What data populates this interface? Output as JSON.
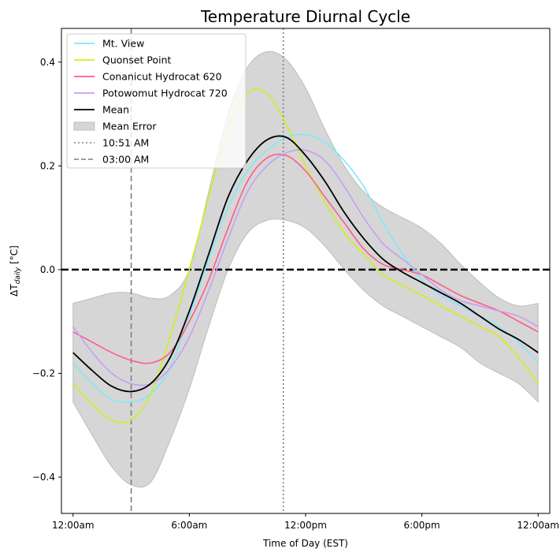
{
  "chart_data": {
    "type": "line",
    "title": "Temperature Diurnal Cycle",
    "xlabel": "Time of Day (EST)",
    "ylabel": "ΔT",
    "ylabel_sub": "daily",
    "ylabel_unit": " [°C]",
    "xlim": [
      -0.6,
      24.6
    ],
    "ylim": [
      -0.47,
      0.465
    ],
    "x_ticks": [
      {
        "value": 0,
        "label": "12:00am"
      },
      {
        "value": 6,
        "label": "6:00am"
      },
      {
        "value": 12,
        "label": "12:00pm"
      },
      {
        "value": 18,
        "label": "6:00pm"
      },
      {
        "value": 24,
        "label": "12:00am"
      }
    ],
    "y_ticks": [
      {
        "value": 0.4,
        "label": "0.4"
      },
      {
        "value": 0.2,
        "label": "0.2"
      },
      {
        "value": 0.0,
        "label": "0.0"
      },
      {
        "value": -0.2,
        "label": "−0.2"
      },
      {
        "value": -0.4,
        "label": "−0.4"
      }
    ],
    "legend_position": "top-left",
    "x": [
      0,
      1,
      2,
      3,
      4,
      5,
      6,
      7,
      8,
      9,
      10,
      11,
      12,
      13,
      14,
      15,
      16,
      17,
      18,
      19,
      20,
      21,
      22,
      23,
      24
    ],
    "series": [
      {
        "name": "Mt. View",
        "color": "#7fe9f8",
        "values": [
          -0.18,
          -0.22,
          -0.25,
          -0.255,
          -0.24,
          -0.19,
          -0.09,
          0.02,
          0.12,
          0.19,
          0.23,
          0.255,
          0.26,
          0.245,
          0.21,
          0.16,
          0.09,
          0.03,
          -0.02,
          -0.05,
          -0.07,
          -0.09,
          -0.11,
          -0.14,
          -0.18
        ]
      },
      {
        "name": "Quonset Point",
        "color": "#ccf21c",
        "values": [
          -0.22,
          -0.26,
          -0.29,
          -0.29,
          -0.24,
          -0.13,
          0.0,
          0.14,
          0.27,
          0.34,
          0.34,
          0.28,
          0.2,
          0.13,
          0.07,
          0.03,
          -0.01,
          -0.03,
          -0.05,
          -0.07,
          -0.09,
          -0.11,
          -0.13,
          -0.17,
          -0.22
        ]
      },
      {
        "name": "Conanicut Hydrocat 620",
        "color": "#ff5d84",
        "values": [
          -0.12,
          -0.14,
          -0.16,
          -0.175,
          -0.18,
          -0.16,
          -0.1,
          -0.02,
          0.08,
          0.17,
          0.215,
          0.22,
          0.19,
          0.14,
          0.09,
          0.04,
          0.01,
          0.0,
          -0.01,
          -0.03,
          -0.05,
          -0.065,
          -0.08,
          -0.1,
          -0.12
        ]
      },
      {
        "name": "Potowomut Hydrocat 720",
        "color": "#c89ef3",
        "values": [
          -0.11,
          -0.16,
          -0.2,
          -0.22,
          -0.22,
          -0.19,
          -0.13,
          -0.04,
          0.06,
          0.15,
          0.2,
          0.225,
          0.23,
          0.21,
          0.16,
          0.1,
          0.05,
          0.02,
          -0.01,
          -0.04,
          -0.06,
          -0.07,
          -0.08,
          -0.09,
          -0.11
        ]
      },
      {
        "name": "Mean",
        "color": "#000000",
        "values": [
          -0.16,
          -0.195,
          -0.225,
          -0.235,
          -0.22,
          -0.17,
          -0.08,
          0.03,
          0.14,
          0.21,
          0.25,
          0.255,
          0.22,
          0.17,
          0.11,
          0.06,
          0.02,
          -0.005,
          -0.025,
          -0.045,
          -0.065,
          -0.09,
          -0.115,
          -0.135,
          -0.16
        ]
      }
    ],
    "error_band": {
      "name": "Mean Error",
      "color": "#d6d6d6",
      "lower": [
        -0.255,
        -0.32,
        -0.38,
        -0.415,
        -0.41,
        -0.33,
        -0.23,
        -0.11,
        0.0,
        0.07,
        0.095,
        0.095,
        0.08,
        0.045,
        0.0,
        -0.04,
        -0.07,
        -0.09,
        -0.11,
        -0.13,
        -0.15,
        -0.18,
        -0.2,
        -0.22,
        -0.255
      ],
      "upper": [
        -0.065,
        -0.055,
        -0.045,
        -0.045,
        -0.055,
        -0.05,
        0.0,
        0.15,
        0.3,
        0.39,
        0.42,
        0.405,
        0.35,
        0.27,
        0.2,
        0.15,
        0.12,
        0.1,
        0.08,
        0.05,
        0.01,
        -0.025,
        -0.055,
        -0.07,
        -0.065
      ]
    },
    "vlines": [
      {
        "name": "10:51 AM",
        "x": 10.85,
        "style": "dotted",
        "color": "#7f7f7f"
      },
      {
        "name": "03:00 AM",
        "x": 3.0,
        "style": "dashed",
        "color": "#7f7f7f"
      }
    ],
    "hline": {
      "y": 0.0,
      "style": "dashed",
      "color": "#000000"
    }
  }
}
